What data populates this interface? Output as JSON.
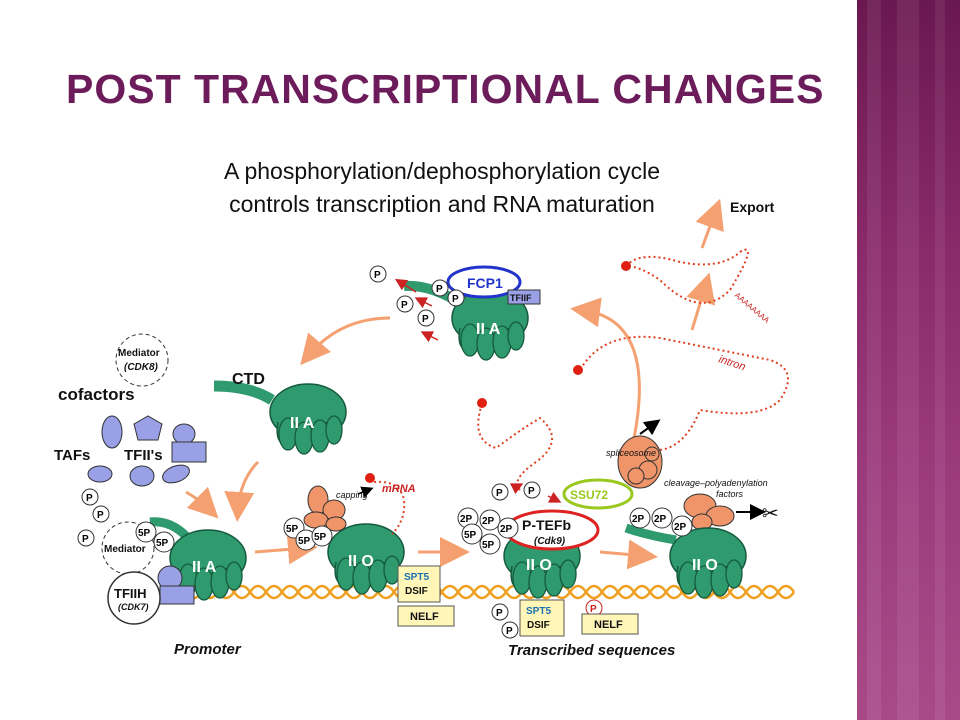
{
  "slide": {
    "title": "POST TRANSCRIPTIONAL CHANGES"
  },
  "figure": {
    "title_line1": "A phosphorylation/dephosphorylation cycle",
    "title_line2": "controls transcription and RNA maturation",
    "labels": {
      "export": "Export",
      "polya": "AAAAAAAA",
      "intron": "intron",
      "fcp1": "FCP1",
      "tfiif": "TFIIF",
      "iia": "II A",
      "iio": "II O",
      "ctd": "CTD",
      "mediator": "Mediator",
      "cdk8": "(CDK8)",
      "cofactors": "cofactors",
      "tafs": "TAFs",
      "tfiis": "TFII's",
      "tfiih": "TFIIH",
      "cdk7": "(CDK7)",
      "mediator2": "Mediator",
      "mrna": "mRNA",
      "capping": "capping",
      "spliceosome": "spliceosome",
      "cleavage": "cleavage–polyadenylation",
      "factors": "factors",
      "ssu72": "SSU72",
      "ptefb": "P-TEFb",
      "cdk9": "(Cdk9)",
      "spt5": "SPT5",
      "dsif": "DSIF",
      "nelf": "NELF",
      "promoter": "Promoter",
      "transcribed": "Transcribed sequences",
      "p": "P",
      "p5": "5P",
      "p2": "2P"
    }
  },
  "colors": {
    "title": "#6c1c5a",
    "polymerase": "#2e9a6e",
    "arrow": "#f4a070",
    "dna": "#f0a020",
    "factor_orange": "#f0956a",
    "factor_blue": "#9aa0e6",
    "dsif_box": "#fff6b8",
    "ptefb_ring": "#d22",
    "ssu72_ring": "#9ac820",
    "fcp1_ring": "#2233cc",
    "sidebar": "#8a2a6a"
  }
}
